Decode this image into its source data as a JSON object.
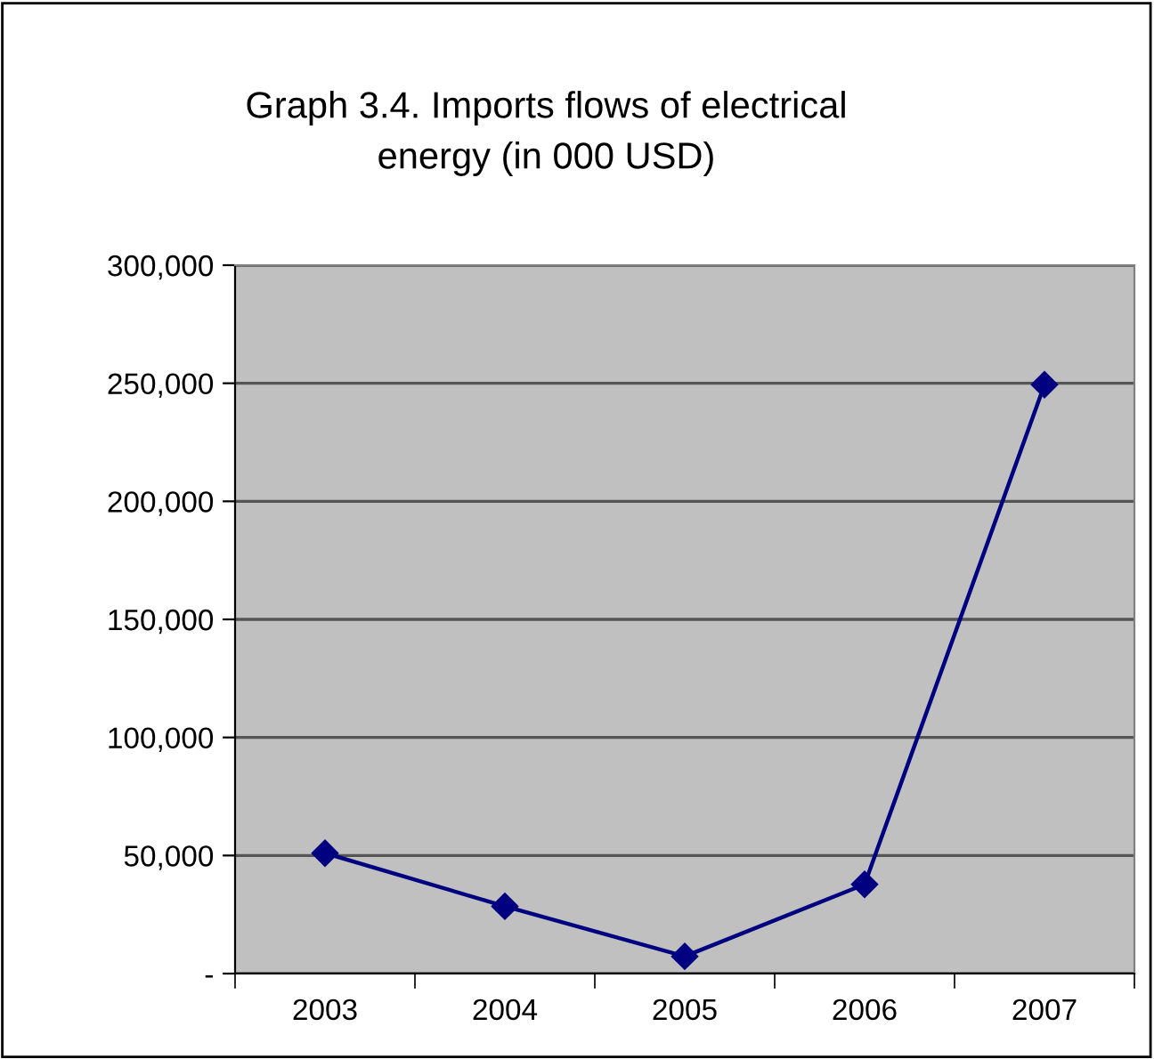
{
  "chart_data": {
    "type": "line",
    "title": "Graph 3.4. Imports flows of electrical\nenergy (in 000 USD)",
    "categories": [
      "2003",
      "2004",
      "2005",
      "2006",
      "2007"
    ],
    "series": [
      {
        "color": "#000080",
        "values": [
          51000,
          28500,
          7300,
          37800,
          249400
        ]
      }
    ],
    "ylim": [
      0,
      300000
    ],
    "yticks": [
      {
        "value": 0,
        "label": "-"
      },
      {
        "value": 50000,
        "label": "50,000"
      },
      {
        "value": 100000,
        "label": "100,000"
      },
      {
        "value": 150000,
        "label": "150,000"
      },
      {
        "value": 200000,
        "label": "200,000"
      },
      {
        "value": 250000,
        "label": "250,000"
      },
      {
        "value": 300000,
        "label": "300,000"
      }
    ],
    "grid": "y",
    "marker": "diamond",
    "line_style": "solid",
    "legend": false
  }
}
